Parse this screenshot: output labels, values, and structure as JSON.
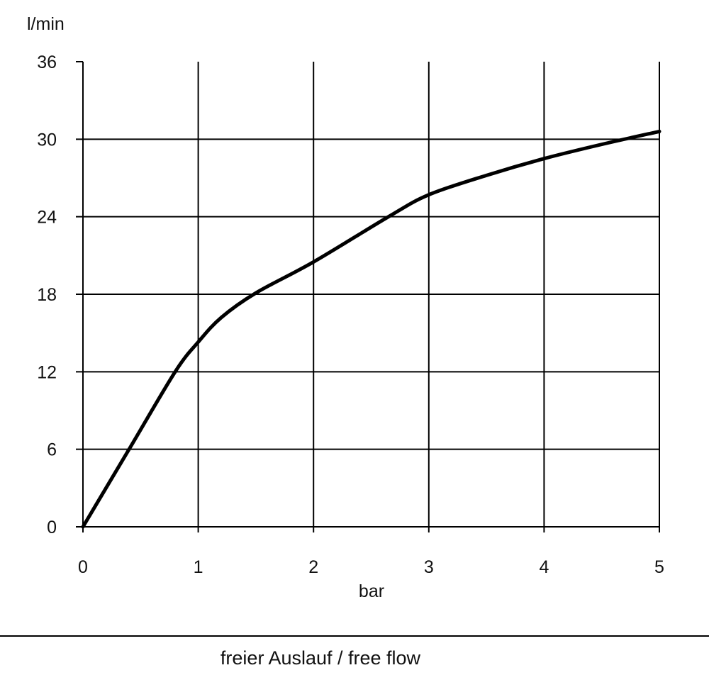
{
  "chart_data": {
    "type": "line",
    "title": "",
    "xlabel": "bar",
    "ylabel": "l/min",
    "caption": "freier Auslauf / free flow",
    "xlim": [
      0,
      5
    ],
    "ylim": [
      0,
      36
    ],
    "x_ticks": [
      "0",
      "1",
      "2",
      "3",
      "4",
      "5"
    ],
    "y_ticks": [
      "0",
      "6",
      "12",
      "18",
      "24",
      "30",
      "36"
    ],
    "grid": true,
    "series": [
      {
        "x": [
          0,
          0.4,
          0.8,
          1.0,
          1.2,
          1.5,
          2.0,
          2.65,
          3.0,
          3.5,
          4.0,
          4.5,
          5.0
        ],
        "y": [
          0,
          6,
          12,
          14.3,
          16.2,
          18.1,
          20.5,
          24,
          25.7,
          27.2,
          28.5,
          29.6,
          30.6
        ]
      }
    ],
    "line_color": "#000000"
  }
}
